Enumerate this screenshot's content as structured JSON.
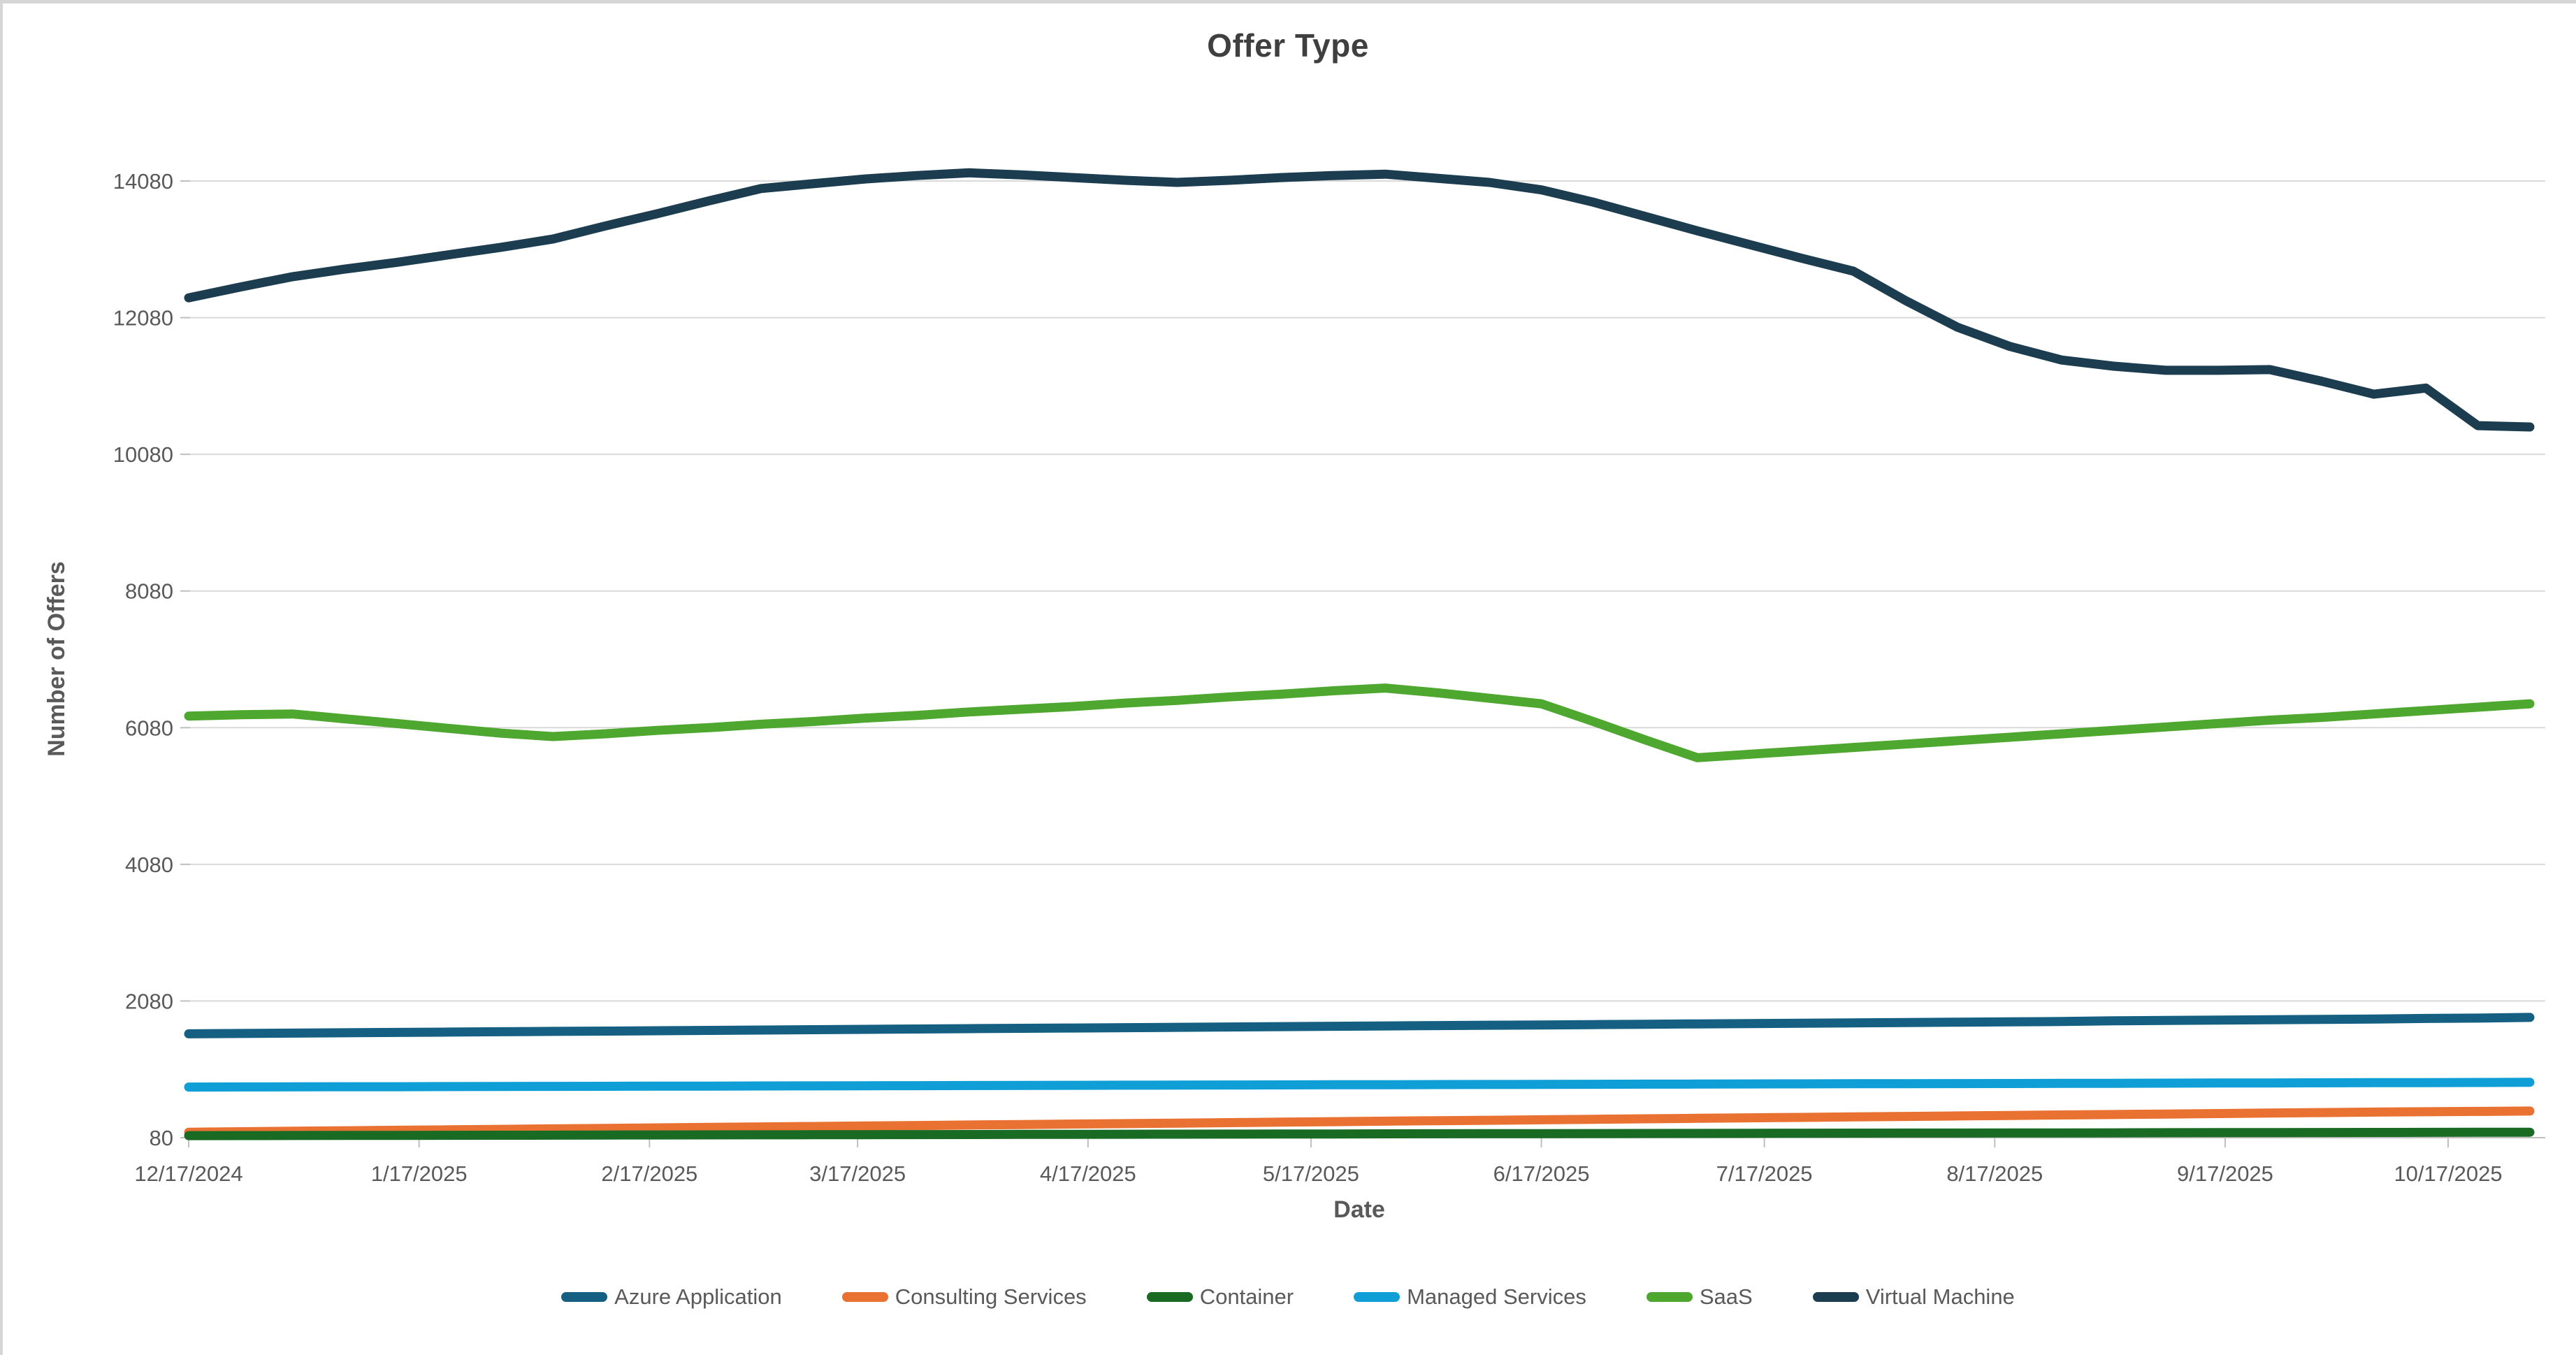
{
  "window": {
    "frame_border_color": "#d6d6d6",
    "background": "#ffffff"
  },
  "chart_data": {
    "type": "line",
    "title": "Offer Type",
    "xlabel": "Date",
    "ylabel": "Number of Offers",
    "ylim": [
      80,
      14080
    ],
    "ytick_step": 2000,
    "ytick_labels": [
      "80",
      "2080",
      "4080",
      "6080",
      "8080",
      "10080",
      "12080",
      "14080"
    ],
    "grid": "horizontal",
    "legend_position": "bottom",
    "x_tick_labels": [
      "12/17/2024",
      "1/17/2025",
      "2/17/2025",
      "3/17/2025",
      "4/17/2025",
      "5/17/2025",
      "6/17/2025",
      "7/17/2025",
      "8/17/2025",
      "9/17/2025",
      "10/17/2025"
    ],
    "x_tick_day_offsets": [
      0,
      31,
      62,
      90,
      121,
      151,
      182,
      212,
      243,
      274,
      304
    ],
    "x_dates": [
      "12/17/2024",
      "12/24/2024",
      "12/31/2024",
      "1/7/2025",
      "1/14/2025",
      "1/21/2025",
      "1/28/2025",
      "2/4/2025",
      "2/11/2025",
      "2/18/2025",
      "2/25/2025",
      "3/4/2025",
      "3/11/2025",
      "3/18/2025",
      "3/25/2025",
      "4/1/2025",
      "4/8/2025",
      "4/15/2025",
      "4/22/2025",
      "4/29/2025",
      "5/6/2025",
      "5/13/2025",
      "5/20/2025",
      "5/27/2025",
      "6/3/2025",
      "6/10/2025",
      "6/17/2025",
      "6/24/2025",
      "7/1/2025",
      "7/8/2025",
      "7/15/2025",
      "7/22/2025",
      "7/29/2025",
      "8/5/2025",
      "8/12/2025",
      "8/19/2025",
      "8/26/2025",
      "9/2/2025",
      "9/9/2025",
      "9/16/2025",
      "9/23/2025",
      "9/30/2025",
      "10/7/2025",
      "10/14/2025",
      "10/21/2025",
      "10/28/2025"
    ],
    "series": [
      {
        "name": "Azure Application",
        "color": "#156082",
        "values": [
          1600,
          1605,
          1610,
          1615,
          1620,
          1625,
          1630,
          1635,
          1640,
          1645,
          1650,
          1655,
          1660,
          1665,
          1670,
          1675,
          1680,
          1685,
          1690,
          1695,
          1700,
          1705,
          1710,
          1715,
          1720,
          1725,
          1730,
          1735,
          1740,
          1745,
          1750,
          1755,
          1760,
          1765,
          1770,
          1775,
          1780,
          1790,
          1795,
          1800,
          1805,
          1810,
          1815,
          1825,
          1830,
          1840
        ]
      },
      {
        "name": "Consulting Services",
        "color": "#E97132",
        "values": [
          160,
          167,
          174,
          181,
          188,
          195,
          202,
          209,
          216,
          223,
          230,
          237,
          244,
          251,
          258,
          265,
          272,
          279,
          286,
          293,
          300,
          307,
          314,
          321,
          328,
          335,
          342,
          349,
          356,
          363,
          370,
          377,
          384,
          391,
          398,
          405,
          412,
          419,
          426,
          433,
          440,
          447,
          454,
          459,
          465,
          470
        ]
      },
      {
        "name": "Container",
        "color": "#196B24",
        "values": [
          110,
          111,
          112,
          113,
          114,
          115,
          116,
          117,
          119,
          120,
          121,
          122,
          123,
          124,
          125,
          126,
          128,
          129,
          130,
          131,
          132,
          133,
          134,
          136,
          137,
          138,
          139,
          140,
          141,
          142,
          144,
          145,
          146,
          147,
          148,
          149,
          150,
          151,
          153,
          154,
          155,
          156,
          157,
          158,
          159,
          160
        ]
      },
      {
        "name": "Managed Services",
        "color": "#0F9ED5",
        "values": [
          820,
          822,
          823,
          825,
          826,
          828,
          829,
          831,
          832,
          834,
          835,
          837,
          838,
          840,
          841,
          843,
          845,
          846,
          848,
          849,
          851,
          852,
          854,
          855,
          857,
          858,
          860,
          861,
          863,
          864,
          866,
          867,
          869,
          870,
          872,
          873,
          875,
          876,
          878,
          880,
          881,
          883,
          885,
          886,
          888,
          890
        ]
      },
      {
        "name": "SaaS",
        "color": "#4EA72E",
        "values": [
          6250,
          6270,
          6280,
          6210,
          6140,
          6070,
          6000,
          5950,
          5990,
          6040,
          6080,
          6130,
          6170,
          6220,
          6260,
          6310,
          6350,
          6390,
          6440,
          6480,
          6530,
          6570,
          6620,
          6660,
          6590,
          6510,
          6430,
          6170,
          5900,
          5640,
          5690,
          5740,
          5790,
          5840,
          5890,
          5940,
          5990,
          6040,
          6090,
          6140,
          6190,
          6230,
          6280,
          6330,
          6380,
          6430
        ]
      },
      {
        "name": "Virtual Machine",
        "color": "#1C3C4F",
        "values": [
          12370,
          12530,
          12680,
          12790,
          12890,
          13000,
          13110,
          13230,
          13420,
          13600,
          13790,
          13970,
          14040,
          14110,
          14160,
          14200,
          14170,
          14130,
          14090,
          14060,
          14090,
          14130,
          14160,
          14180,
          14120,
          14060,
          13950,
          13770,
          13560,
          13350,
          13150,
          12950,
          12760,
          12330,
          11940,
          11660,
          11460,
          11370,
          11310,
          11310,
          11320,
          11150,
          10960,
          11050,
          10500,
          10480
        ]
      }
    ],
    "style": {
      "grid_color": "#d9d9d9",
      "axis_line_color": "#bfbfbf",
      "tick_mark_color": "#bfbfbf",
      "tick_label_color": "#595959",
      "title_color": "#3f3f3f",
      "line_width": 13
    }
  }
}
